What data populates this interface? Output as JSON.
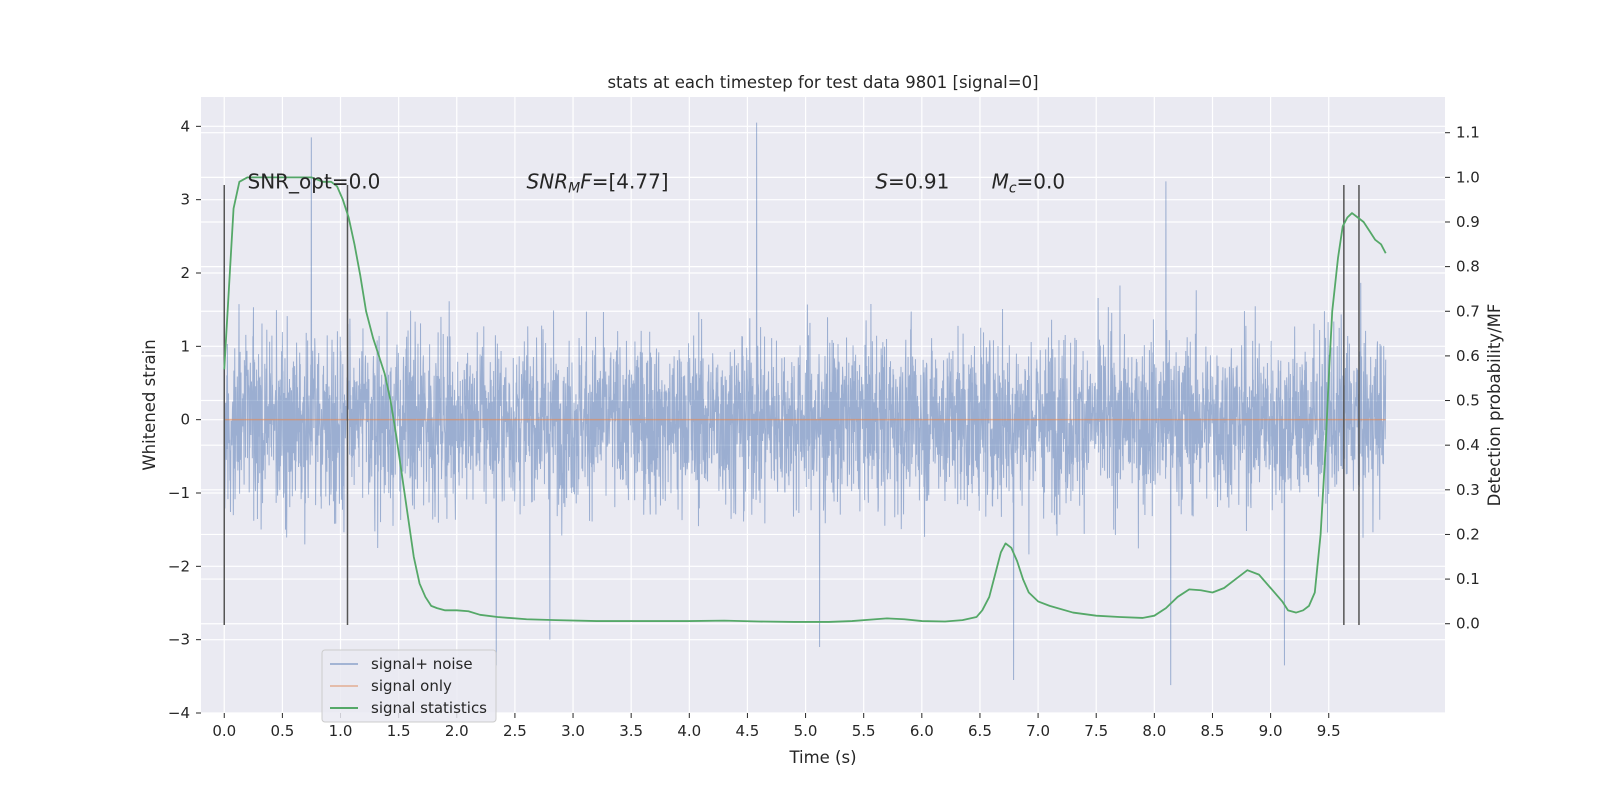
{
  "chart_data": {
    "type": "line",
    "title": "stats at each timestep for test data 9801 [signal=0]",
    "xlabel": "Time (s)",
    "ylabel": "Whitened strain",
    "y2label": "Detection probability/MF",
    "xlim": [
      -0.2,
      10.5
    ],
    "ylim": [
      -4,
      4.4
    ],
    "y2lim": [
      -0.2,
      1.18
    ],
    "xticks": [
      "0.0",
      "0.5",
      "1.0",
      "1.5",
      "2.0",
      "2.5",
      "3.0",
      "3.5",
      "4.0",
      "4.5",
      "5.0",
      "5.5",
      "6.0",
      "6.5",
      "7.0",
      "7.5",
      "8.0",
      "8.5",
      "9.0",
      "9.5"
    ],
    "yticks": [
      "4",
      "3",
      "2",
      "1",
      "0",
      "−1",
      "−2",
      "−3",
      "−4"
    ],
    "y2ticks": [
      "1.1",
      "1.0",
      "0.9",
      "0.8",
      "0.7",
      "0.6",
      "0.5",
      "0.4",
      "0.3",
      "0.2",
      "0.1",
      "0.0"
    ],
    "grid": true,
    "legend_position": "lower-left",
    "annotations": [
      {
        "text": "SNR_opt=0.0",
        "x": 0.2,
        "y": 3.15
      },
      {
        "text": "SNR_MF=[4.77]",
        "x": 2.6,
        "y": 3.15
      },
      {
        "text": "S=0.91",
        "x": 5.6,
        "y": 3.15
      },
      {
        "text": "M_c=0.0",
        "x": 6.6,
        "y": 3.15
      }
    ],
    "vertical_lines": [
      0.0,
      1.06,
      9.63,
      9.76
    ],
    "vertical_line_range": [
      -2.8,
      3.2
    ],
    "series": [
      {
        "name": "signal+ noise",
        "color": "#4c72b0",
        "axis": "left",
        "description_points": 4096,
        "x_range": [
          0.0,
          9.99
        ],
        "spikes": [
          {
            "x": 0.75,
            "y": 3.85
          },
          {
            "x": 4.58,
            "y": 4.05
          },
          {
            "x": 8.1,
            "y": 3.25
          },
          {
            "x": 2.34,
            "y": -3.35
          },
          {
            "x": 6.79,
            "y": -3.55
          },
          {
            "x": 8.14,
            "y": -3.62
          },
          {
            "x": 9.12,
            "y": -3.35
          },
          {
            "x": 5.12,
            "y": -3.1
          },
          {
            "x": 2.8,
            "y": -3.0
          }
        ]
      },
      {
        "name": "signal only",
        "color": "#dd8452",
        "axis": "left",
        "x": [
          0.0,
          9.99
        ],
        "y": [
          0.0,
          0.0
        ]
      },
      {
        "name": "signal statistics",
        "color": "#55a868",
        "axis": "right",
        "x": [
          0.0,
          0.04,
          0.08,
          0.13,
          0.2,
          0.3,
          0.45,
          0.6,
          0.75,
          0.85,
          0.92,
          0.97,
          1.02,
          1.07,
          1.12,
          1.17,
          1.22,
          1.28,
          1.33,
          1.38,
          1.43,
          1.48,
          1.53,
          1.58,
          1.63,
          1.68,
          1.73,
          1.78,
          1.83,
          1.9,
          2.0,
          2.1,
          2.2,
          2.35,
          2.6,
          2.85,
          3.2,
          3.6,
          4.0,
          4.3,
          4.6,
          4.9,
          5.2,
          5.4,
          5.6,
          5.7,
          5.85,
          6.0,
          6.2,
          6.35,
          6.47,
          6.52,
          6.58,
          6.63,
          6.68,
          6.72,
          6.77,
          6.82,
          6.87,
          6.92,
          7.0,
          7.1,
          7.3,
          7.5,
          7.7,
          7.9,
          8.0,
          8.1,
          8.2,
          8.3,
          8.4,
          8.5,
          8.6,
          8.7,
          8.8,
          8.9,
          9.0,
          9.1,
          9.15,
          9.22,
          9.28,
          9.33,
          9.38,
          9.43,
          9.47,
          9.5,
          9.53,
          9.58,
          9.62,
          9.66,
          9.7,
          9.75,
          9.8,
          9.85,
          9.9,
          9.95,
          9.99
        ],
        "y": [
          0.57,
          0.75,
          0.93,
          0.99,
          1.0,
          1.0,
          1.0,
          1.0,
          1.0,
          0.99,
          0.99,
          0.98,
          0.95,
          0.91,
          0.85,
          0.78,
          0.7,
          0.64,
          0.6,
          0.56,
          0.5,
          0.42,
          0.33,
          0.24,
          0.15,
          0.09,
          0.06,
          0.04,
          0.035,
          0.03,
          0.03,
          0.028,
          0.02,
          0.015,
          0.01,
          0.008,
          0.006,
          0.006,
          0.006,
          0.007,
          0.005,
          0.004,
          0.004,
          0.006,
          0.01,
          0.012,
          0.01,
          0.006,
          0.005,
          0.008,
          0.015,
          0.03,
          0.06,
          0.11,
          0.16,
          0.18,
          0.17,
          0.14,
          0.1,
          0.07,
          0.05,
          0.04,
          0.025,
          0.018,
          0.015,
          0.013,
          0.018,
          0.035,
          0.06,
          0.077,
          0.075,
          0.07,
          0.08,
          0.1,
          0.12,
          0.11,
          0.08,
          0.05,
          0.03,
          0.025,
          0.03,
          0.04,
          0.07,
          0.2,
          0.38,
          0.55,
          0.7,
          0.82,
          0.89,
          0.91,
          0.92,
          0.91,
          0.9,
          0.88,
          0.86,
          0.85,
          0.83
        ]
      }
    ]
  }
}
